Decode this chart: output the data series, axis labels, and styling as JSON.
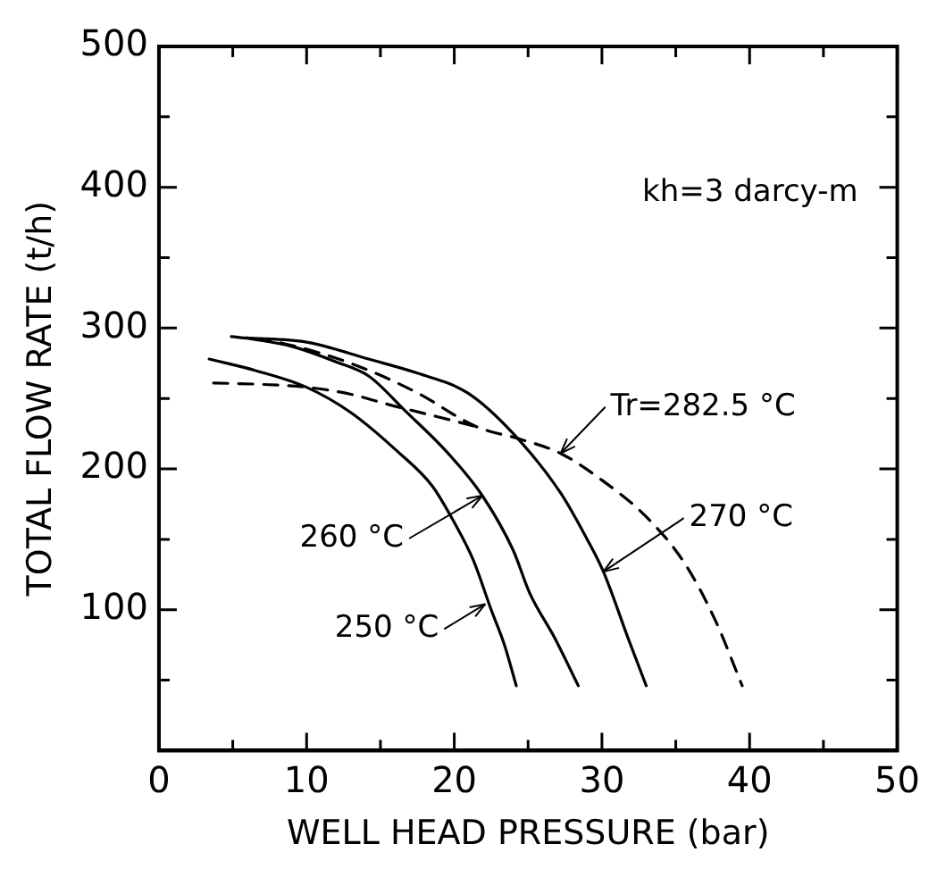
{
  "chart_data": {
    "type": "line",
    "xlabel": "WELL HEAD PRESSURE (bar)",
    "ylabel": "TOTAL FLOW RATE (t/h)",
    "xlim": [
      0,
      50
    ],
    "ylim": [
      0,
      500
    ],
    "xticks": [
      0,
      {
        "value": 5,
        "label": null
      },
      10,
      {
        "value": 15,
        "label": null
      },
      20,
      {
        "value": 25,
        "label": null
      },
      30,
      {
        "value": 35,
        "label": null
      },
      40,
      {
        "value": 45,
        "label": null
      },
      50
    ],
    "yticks": [
      {
        "value": 0,
        "label": null
      },
      {
        "value": 50,
        "label": null
      },
      100,
      {
        "value": 150,
        "label": null
      },
      200,
      {
        "value": 250,
        "label": null
      },
      300,
      {
        "value": 350,
        "label": null
      },
      400,
      {
        "value": 450,
        "label": null
      },
      500
    ],
    "grid": false,
    "legend": false,
    "marker": "none",
    "series": [
      {
        "color": "#000000",
        "line_style": "solid",
        "x": [
          3.4,
          6.5,
          10,
          13,
          16.2,
          18.5,
          20,
          21.3,
          22.5,
          23.4,
          24.2
        ],
        "values": [
          278,
          270,
          258,
          240,
          212,
          188,
          162,
          135,
          100,
          75,
          46
        ]
      },
      {
        "color": "#000000",
        "line_style": "solid",
        "x": [
          5.9,
          9,
          12,
          14.2,
          16.7,
          19.5,
          21.9,
          24,
          25.1,
          26.8,
          28.4
        ],
        "values": [
          293,
          287,
          276,
          266,
          241,
          212,
          181,
          142,
          112,
          80,
          46
        ]
      },
      {
        "color": "#000000",
        "line_style": "solid",
        "x": [
          5.9,
          10,
          14.2,
          17.5,
          20.9,
          24,
          27.2,
          29,
          30.1,
          31.8,
          33
        ],
        "values": [
          293,
          290,
          278,
          268,
          254,
          225,
          183,
          150,
          127,
          79,
          46
        ]
      },
      {
        "color": "#000000",
        "line_style": "dashed",
        "x": [
          4.9,
          8,
          11,
          14.2,
          17.5,
          21.5,
          24.5,
          27.2,
          30,
          33,
          35.6,
          37.7,
          39.5
        ],
        "values": [
          294,
          290,
          282,
          270,
          254,
          230,
          221,
          211,
          192,
          166,
          133,
          92,
          46
        ]
      },
      {
        "color": "#000000",
        "line_style": "dashed",
        "x": [
          3.7,
          7,
          10,
          13,
          15.8,
          18.5,
          21.5
        ],
        "values": [
          261,
          260,
          258,
          253,
          245,
          238,
          230
        ]
      }
    ],
    "annotations": [
      "kh=3 darcy-m",
      {
        "text": "Tr=282.5 °C",
        "x": 27.2,
        "y": 211
      },
      {
        "text": "260 °C",
        "x": 21.9,
        "y": 181
      },
      {
        "text": "250 °C",
        "x": 22.1,
        "y": 104
      },
      {
        "text": "270 °C",
        "x": 30.1,
        "y": 127
      }
    ]
  }
}
